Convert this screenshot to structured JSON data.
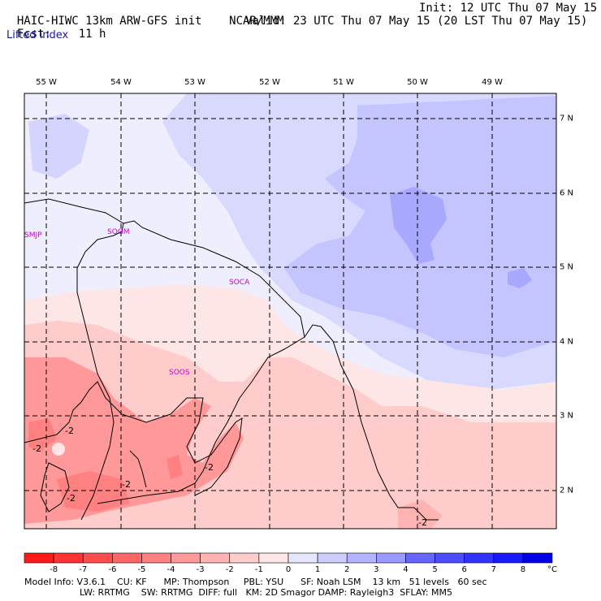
{
  "header": {
    "model": "HAIC-HIWC 13km ARW-GFS init",
    "org": "NCAR/MMM",
    "init": "Init: 12 UTC Thu 07 May 15",
    "fcst_label": "Fcst:",
    "fcst_value": "11 h",
    "valid": "Valid: 23 UTC Thu 07 May 15 (20 LST Thu 07 May 15)",
    "field": "Lifted index"
  },
  "map": {
    "lon_labels": [
      "55 W",
      "54 W",
      "53 W",
      "52 W",
      "51 W",
      "50 W",
      "49 W"
    ],
    "lat_labels": [
      "7 N",
      "6 N",
      "5 N",
      "4 N",
      "3 N",
      "2 N"
    ],
    "stations": [
      "SMJP",
      "SOGM",
      "SOCA",
      "SOOS"
    ],
    "contour_labels": [
      "-2",
      "-2",
      "-2",
      "-2",
      "-2",
      "-2"
    ]
  },
  "colorbar": {
    "ticks": [
      "-8",
      "-7",
      "-6",
      "-5",
      "-4",
      "-3",
      "-2",
      "-1",
      "0",
      "1",
      "2",
      "3",
      "4",
      "5",
      "6",
      "7",
      "8"
    ],
    "unit": "°C",
    "colors": [
      "#ff1a1a",
      "#ff3333",
      "#ff4d4d",
      "#ff6666",
      "#ff8080",
      "#ff9999",
      "#ffb3b3",
      "#ffcccc",
      "#ffe6e6",
      "#e6e6ff",
      "#ccccff",
      "#b3b3ff",
      "#9999ff",
      "#6666ff",
      "#4d4dff",
      "#3333ff",
      "#1a1aff",
      "#0000e6"
    ]
  },
  "footer": {
    "line1": "Model Info: V3.6.1    CU: KF      MP: Thompson     PBL: YSU      SF: Noah LSM    13 km   51 levels   60 sec",
    "line2": "LW: RRTMG    SW: RRTMG  DIFF: full   KM: 2D Smagor DAMP: Rayleigh3  SFLAY: MM5"
  },
  "colors": {
    "station": "#cc00cc",
    "header_sub": "#1a1aa6"
  }
}
